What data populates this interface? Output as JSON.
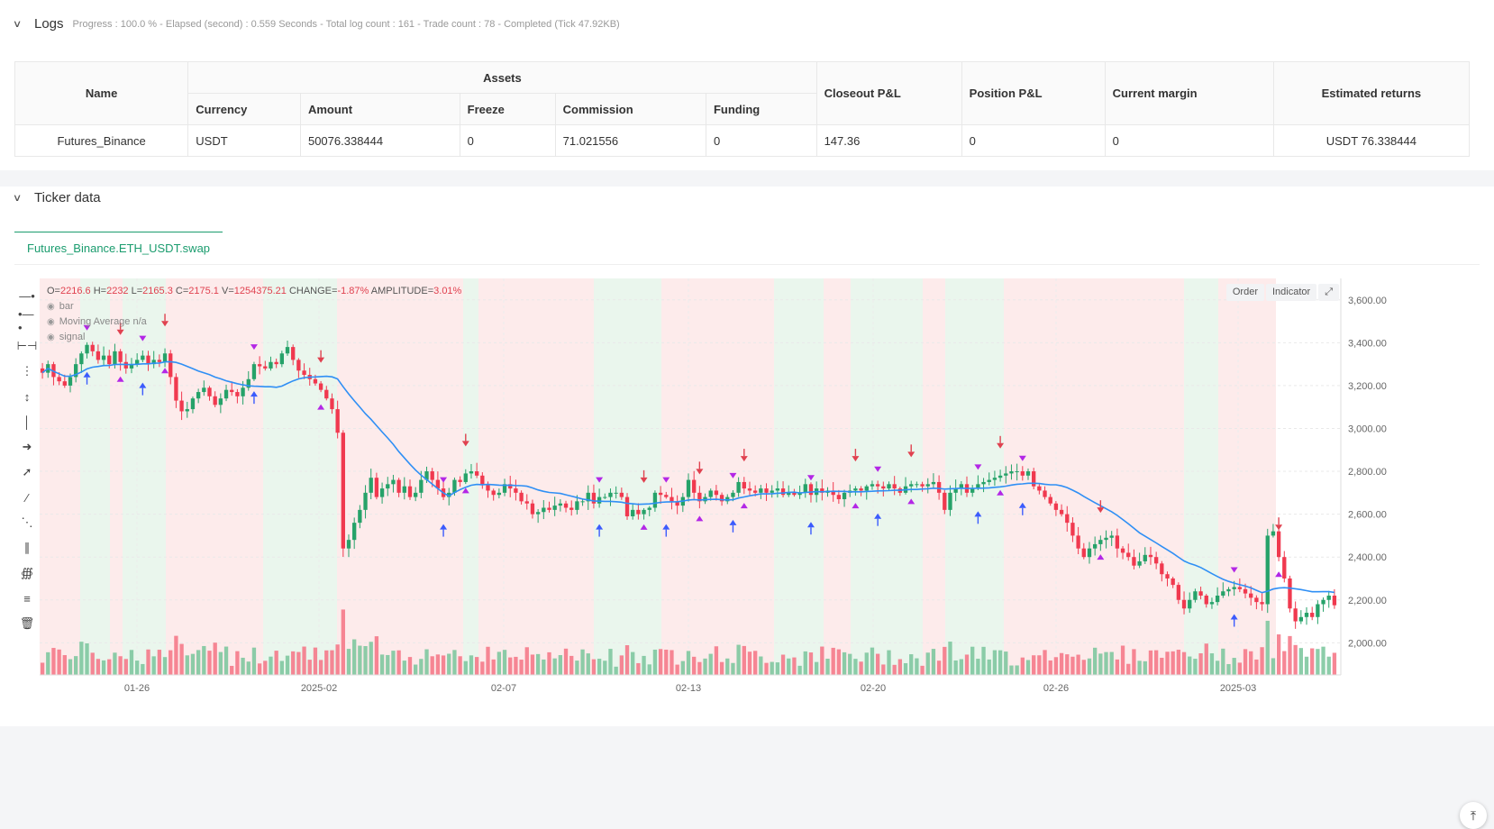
{
  "logs": {
    "title": "Logs",
    "meta": "Progress : 100.0 % - Elapsed (second) : 0.559  Seconds - Total log count : 161 - Trade count : 78 - Completed (Tick 47.92KB)",
    "table": {
      "headers": {
        "name": "Name",
        "assets": "Assets",
        "currency": "Currency",
        "amount": "Amount",
        "freeze": "Freeze",
        "commission": "Commission",
        "funding": "Funding",
        "closeout": "Closeout P&L",
        "position": "Position P&L",
        "margin": "Current margin",
        "returns": "Estimated returns"
      },
      "row": {
        "name": "Futures_Binance",
        "currency": "USDT",
        "amount": "50076.338444",
        "freeze": "0",
        "commission": "71.021556",
        "funding": "0",
        "closeout": "147.36",
        "position": "0",
        "margin": "0",
        "returns": "USDT 76.338444"
      }
    }
  },
  "ticker": {
    "title": "Ticker data",
    "tab": "Futures_Binance.ETH_USDT.swap",
    "buttons": {
      "order": "Order",
      "indicator": "Indicator"
    },
    "legend": {
      "o_label": "O=",
      "o": "2216.6",
      "h_label": "H=",
      "h": "2232",
      "l_label": "L=",
      "l": "2165.3",
      "c_label": "C=",
      "c": "2175.1",
      "v_label": "V=",
      "v": "1254375.21",
      "change_label": "CHANGE=",
      "change": "-1.87%",
      "amp_label": "AMPLITUDE=",
      "amp": "3.01%",
      "series1": "bar",
      "series2": "Moving Average  n/a",
      "series3": "signal"
    }
  },
  "chart_data": {
    "type": "candlestick",
    "symbol": "Futures_Binance.ETH_USDT.swap",
    "x_ticks": [
      "01-26",
      "2025-02",
      "02-07",
      "02-13",
      "02-20",
      "02-26",
      "2025-03"
    ],
    "y_ticks": [
      "2,000.00",
      "2,200.00",
      "2,400.00",
      "2,600.00",
      "2,800.00",
      "3,000.00",
      "3,200.00",
      "3,400.00",
      "3,600.00"
    ],
    "ylim": [
      1850,
      3700
    ],
    "close": [
      3260,
      3300,
      3240,
      3220,
      3200,
      3240,
      3300,
      3350,
      3390,
      3360,
      3320,
      3340,
      3300,
      3360,
      3310,
      3280,
      3300,
      3320,
      3340,
      3300,
      3320,
      3310,
      3350,
      3240,
      3130,
      3080,
      3090,
      3140,
      3170,
      3190,
      3150,
      3110,
      3140,
      3180,
      3170,
      3150,
      3190,
      3230,
      3300,
      3290,
      3280,
      3310,
      3300,
      3350,
      3380,
      3320,
      3270,
      3250,
      3230,
      3210,
      3180,
      3140,
      3090,
      2980,
      2440,
      2480,
      2560,
      2620,
      2700,
      2770,
      2680,
      2720,
      2740,
      2760,
      2700,
      2730,
      2680,
      2700,
      2760,
      2800,
      2760,
      2720,
      2680,
      2700,
      2760,
      2750,
      2790,
      2800,
      2780,
      2740,
      2710,
      2690,
      2700,
      2740,
      2720,
      2700,
      2660,
      2650,
      2600,
      2610,
      2630,
      2620,
      2640,
      2650,
      2630,
      2620,
      2660,
      2660,
      2700,
      2650,
      2680,
      2680,
      2700,
      2700,
      2680,
      2590,
      2620,
      2600,
      2620,
      2630,
      2700,
      2690,
      2680,
      2660,
      2640,
      2680,
      2760,
      2700,
      2660,
      2680,
      2710,
      2690,
      2660,
      2680,
      2700,
      2750,
      2720,
      2710,
      2700,
      2720,
      2700,
      2710,
      2720,
      2690,
      2700,
      2690,
      2700,
      2740,
      2690,
      2720,
      2700,
      2710,
      2690,
      2670,
      2700,
      2710,
      2720,
      2710,
      2730,
      2740,
      2730,
      2720,
      2740,
      2720,
      2700,
      2730,
      2740,
      2740,
      2730,
      2740,
      2750,
      2700,
      2620,
      2700,
      2720,
      2740,
      2700,
      2720,
      2740,
      2750,
      2760,
      2770,
      2780,
      2790,
      2800,
      2800,
      2780,
      2800,
      2730,
      2710,
      2680,
      2650,
      2620,
      2600,
      2560,
      2500,
      2440,
      2400,
      2440,
      2460,
      2480,
      2490,
      2500,
      2440,
      2420,
      2400,
      2360,
      2380,
      2410,
      2400,
      2370,
      2320,
      2300,
      2270,
      2200,
      2160,
      2200,
      2240,
      2220,
      2180,
      2190,
      2220,
      2240,
      2250,
      2260,
      2250,
      2230,
      2210,
      2190,
      2180,
      2500,
      2520,
      2400,
      2300,
      2160,
      2100,
      2120,
      2140,
      2120,
      2180,
      2200,
      2220,
      2175
    ]
  }
}
